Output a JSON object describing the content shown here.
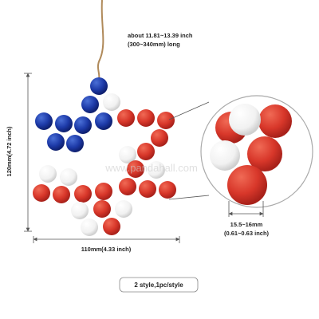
{
  "annotations": {
    "length": [
      "about 11.81~13.39 inch",
      "(300~340mm) long"
    ],
    "height": "120mm(4.72 inch)",
    "width": "110mm(4.33 inch)",
    "bead_size": [
      "15.5~16mm",
      "(0.61~0.63 inch)"
    ],
    "footer": "2 style,1pc/style",
    "watermark": "www.pandahall.com"
  }
}
